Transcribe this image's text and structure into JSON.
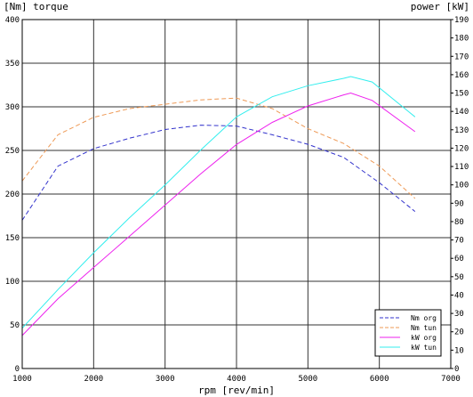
{
  "chart_data": {
    "type": "line",
    "left_axis_label": "[Nm] torque",
    "right_axis_label": "power [kW]",
    "xlabel": "rpm [rev/min]",
    "xlim": [
      1000,
      7000
    ],
    "ylim_left": [
      0,
      400
    ],
    "ylim_right": [
      0,
      190
    ],
    "x_ticks": [
      1000,
      2000,
      3000,
      4000,
      5000,
      6000,
      7000
    ],
    "y_left_ticks": [
      0,
      50,
      100,
      150,
      200,
      250,
      300,
      350,
      400
    ],
    "y_right_ticks": [
      0,
      10,
      20,
      30,
      40,
      50,
      60,
      70,
      80,
      90,
      100,
      110,
      120,
      130,
      140,
      150,
      160,
      170,
      180,
      190
    ],
    "grid": true,
    "legend_position": "bottom-right",
    "series": [
      {
        "name": "Nm org",
        "axis": "left",
        "color": "#3333cc",
        "dash": "dashed",
        "x": [
          1000,
          1500,
          2000,
          2500,
          3000,
          3500,
          4000,
          4500,
          5000,
          5500,
          6000,
          6500
        ],
        "y": [
          170,
          232,
          252,
          264,
          274,
          279,
          278,
          268,
          257,
          242,
          213,
          180
        ]
      },
      {
        "name": "Nm tun",
        "axis": "left",
        "color": "#ee9955",
        "dash": "dashed",
        "x": [
          1000,
          1500,
          2000,
          2500,
          3000,
          3500,
          4000,
          4500,
          5000,
          5500,
          6000,
          6500
        ],
        "y": [
          215,
          268,
          288,
          298,
          303,
          308,
          310,
          298,
          275,
          258,
          232,
          195
        ]
      },
      {
        "name": "kW org",
        "axis": "right",
        "color": "#ee22ee",
        "dash": "solid",
        "x": [
          1000,
          1500,
          2000,
          2500,
          3000,
          3500,
          4000,
          4500,
          5000,
          5500,
          5600,
          5900,
          6500
        ],
        "y": [
          18,
          38,
          55,
          72,
          89,
          106,
          122,
          134,
          143,
          149,
          150,
          146,
          129
        ]
      },
      {
        "name": "kW tun",
        "axis": "right",
        "color": "#33eeee",
        "dash": "solid",
        "x": [
          1000,
          1500,
          2000,
          2500,
          3000,
          3500,
          4000,
          4500,
          5000,
          5500,
          5600,
          5900,
          6500
        ],
        "y": [
          22,
          43,
          63,
          82,
          100,
          119,
          137,
          148,
          154,
          158,
          159,
          156,
          137
        ]
      }
    ]
  }
}
